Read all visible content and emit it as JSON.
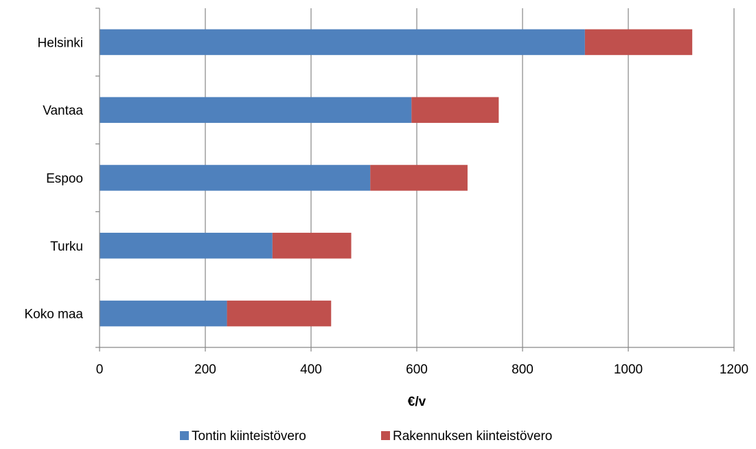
{
  "chart_data": {
    "type": "bar",
    "orientation": "horizontal",
    "stacked": true,
    "categories": [
      "Helsinki",
      "Vantaa",
      "Espoo",
      "Turku",
      "Koko maa"
    ],
    "series": [
      {
        "name": "Tontin kiinteistövero",
        "values": [
          918,
          590,
          512,
          327,
          241
        ],
        "color": "#4f81bd"
      },
      {
        "name": "Rakennuksen kiinteistövero",
        "values": [
          203,
          165,
          184,
          149,
          197
        ],
        "color": "#c0504d"
      }
    ],
    "xlabel": "€/v",
    "xlim": [
      0,
      1200
    ],
    "xticks": [
      "0",
      "200",
      "400",
      "600",
      "800",
      "1000",
      "1200"
    ],
    "grid": "vertical",
    "legend": "bottom"
  }
}
